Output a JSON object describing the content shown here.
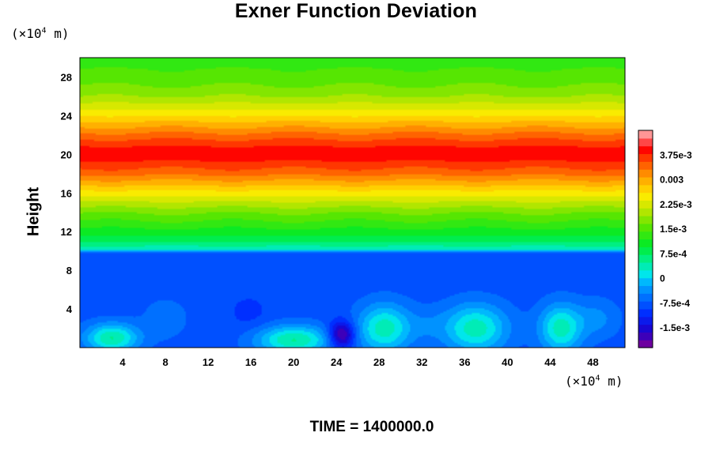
{
  "chart_data": {
    "type": "heatmap",
    "title": "Exner Function Deviation",
    "ylabel": "Height",
    "y_unit": "(×10⁴ m)",
    "x_unit": "(×10⁴ m)",
    "unit_prefix": "(×10",
    "unit_exp": "4",
    "unit_suffix": " m)",
    "xlim": [
      0,
      51
    ],
    "ylim": [
      0,
      30
    ],
    "x_ticks": [
      4,
      8,
      12,
      16,
      20,
      24,
      28,
      32,
      36,
      40,
      44,
      48
    ],
    "y_ticks": [
      4,
      8,
      12,
      16,
      20,
      24,
      28
    ],
    "vmin": -0.0021,
    "vmax": 0.0045,
    "colorbar_ticks": [
      {
        "value": 0.00375,
        "label": "3.75e-3"
      },
      {
        "value": 0.003,
        "label": "0.003"
      },
      {
        "value": 0.00225,
        "label": "2.25e-3"
      },
      {
        "value": 0.0015,
        "label": "1.5e-3"
      },
      {
        "value": 0.00075,
        "label": "7.5e-4"
      },
      {
        "value": 0,
        "label": "0"
      },
      {
        "value": -0.00075,
        "label": "-7.5e-4"
      },
      {
        "value": -0.0015,
        "label": "-1.5e-3"
      }
    ],
    "vertical_profile": [
      {
        "y": 0,
        "v": -0.0008
      },
      {
        "y": 9.8,
        "v": -0.0008
      },
      {
        "y": 10.2,
        "v": 0.0003
      },
      {
        "y": 11,
        "v": 0.0008
      },
      {
        "y": 12,
        "v": 0.0011
      },
      {
        "y": 14,
        "v": 0.0017
      },
      {
        "y": 16,
        "v": 0.0025
      },
      {
        "y": 18,
        "v": 0.0034
      },
      {
        "y": 19.5,
        "v": 0.00385
      },
      {
        "y": 20.5,
        "v": 0.0039
      },
      {
        "y": 22,
        "v": 0.0034
      },
      {
        "y": 24,
        "v": 0.0026
      },
      {
        "y": 26,
        "v": 0.0019
      },
      {
        "y": 28,
        "v": 0.0015
      },
      {
        "y": 30,
        "v": 0.00135
      }
    ],
    "anomalies": [
      {
        "x": 24.5,
        "y": 1.3,
        "sx": 1.2,
        "sy": 1.4,
        "v": -0.0021
      },
      {
        "x": 15.8,
        "y": 3.6,
        "sx": 2.0,
        "sy": 2.0,
        "v": -0.001
      },
      {
        "x": 8.0,
        "y": 3.0,
        "sx": 2.0,
        "sy": 2.0,
        "v": -0.0005
      },
      {
        "x": 32.5,
        "y": 2.3,
        "sx": 1.8,
        "sy": 1.8,
        "v": -0.0006
      },
      {
        "x": 41.8,
        "y": 2.2,
        "sx": 0.9,
        "sy": 0.9,
        "v": -0.0008
      },
      {
        "x": 48.5,
        "y": 3.0,
        "sx": 2.0,
        "sy": 2.0,
        "v": -0.0004
      },
      {
        "x": 3.0,
        "y": 1.0,
        "sx": 2.5,
        "sy": 1.5,
        "v": 0.0005
      },
      {
        "x": 20.0,
        "y": 0.8,
        "sx": 3.5,
        "sy": 1.5,
        "v": 0.0005
      },
      {
        "x": 28.5,
        "y": 2.0,
        "sx": 2.5,
        "sy": 2.5,
        "v": 0.0004
      },
      {
        "x": 37.0,
        "y": 2.0,
        "sx": 3.0,
        "sy": 2.5,
        "v": 0.0004
      },
      {
        "x": 45.0,
        "y": 2.0,
        "sx": 2.0,
        "sy": 2.5,
        "v": 0.0004
      }
    ]
  },
  "footer": {
    "time_label": "TIME = 1400000.0"
  }
}
